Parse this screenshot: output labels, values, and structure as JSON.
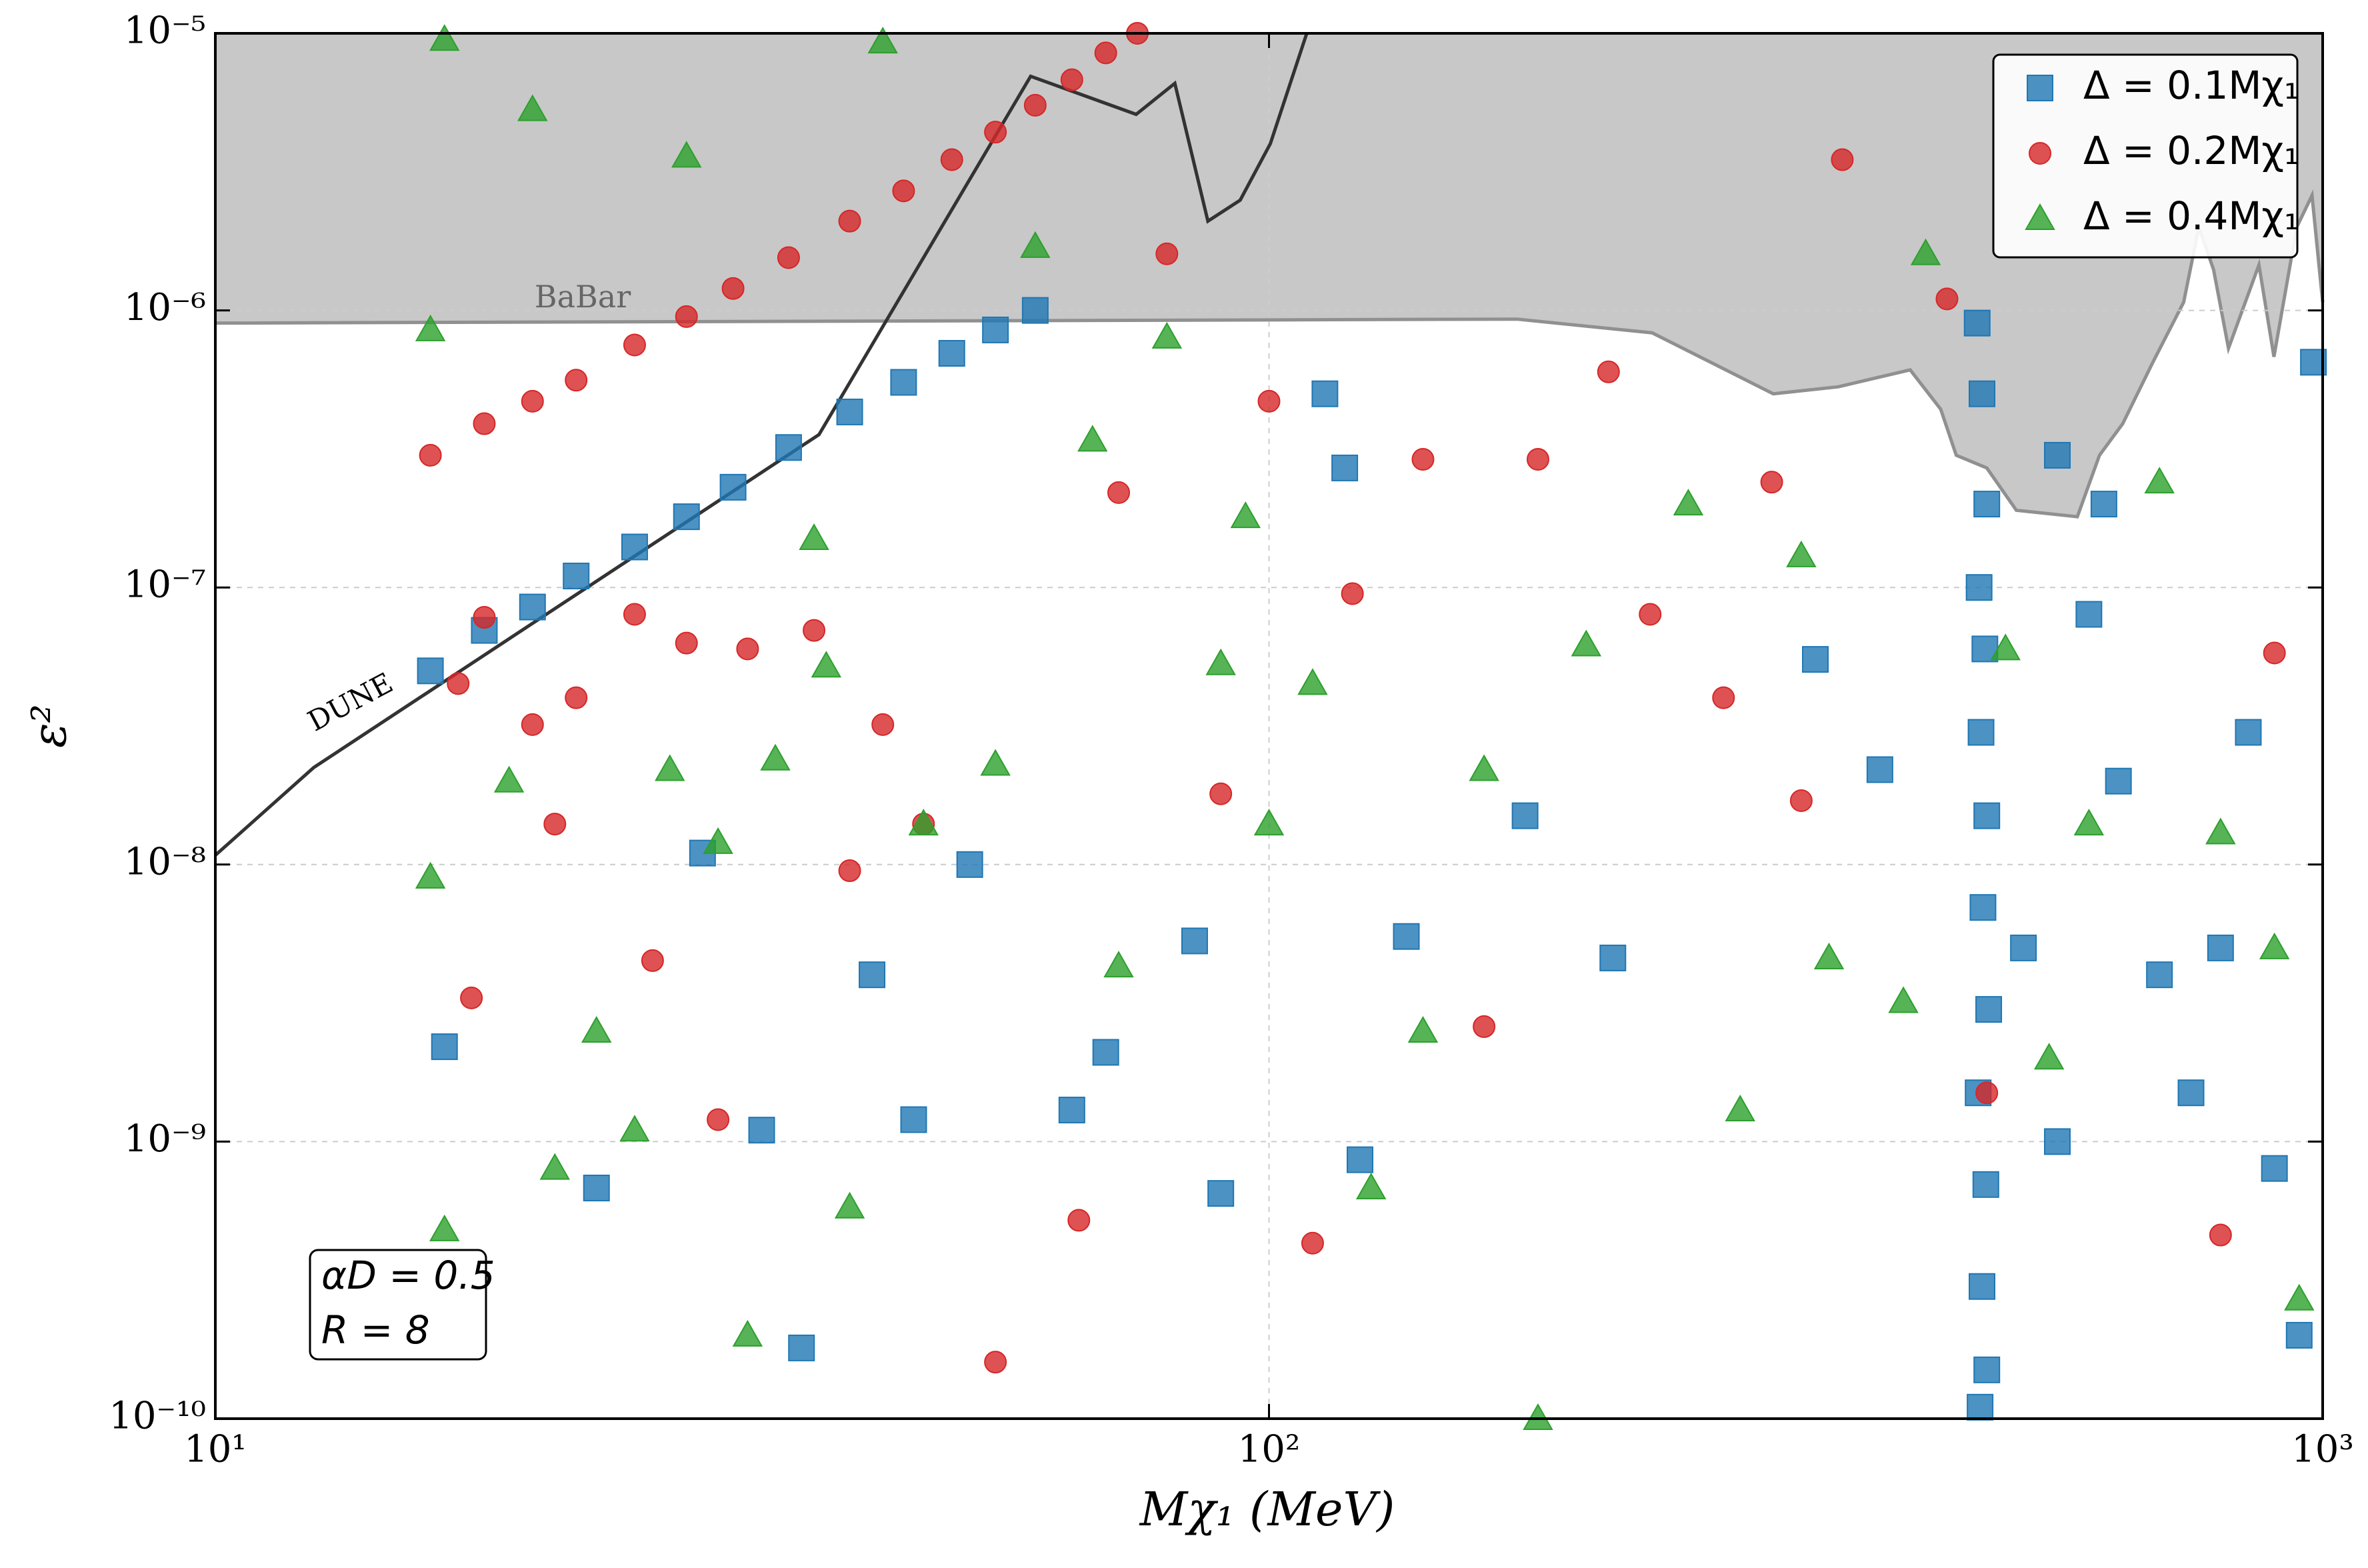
{
  "chart_data": {
    "type": "scatter",
    "xlabel": "Mχ₁ (MeV)",
    "ylabel": "ε²",
    "xscale": "log",
    "yscale": "log",
    "xlim": [
      10,
      1000
    ],
    "ylim": [
      1e-10,
      1e-05
    ],
    "xticks": [
      {
        "value": 10,
        "label": "10¹"
      },
      {
        "value": 100,
        "label": "10²"
      },
      {
        "value": 1000,
        "label": "10³"
      }
    ],
    "yticks": [
      {
        "value": 1e-10,
        "label": "10⁻¹⁰"
      },
      {
        "value": 1e-09,
        "label": "10⁻⁹"
      },
      {
        "value": 1e-08,
        "label": "10⁻⁸"
      },
      {
        "value": 1e-07,
        "label": "10⁻⁷"
      },
      {
        "value": 1e-06,
        "label": "10⁻⁶"
      },
      {
        "value": 1e-05,
        "label": "10⁻⁵"
      }
    ],
    "grid": true,
    "legend": "upper right",
    "regions": [
      {
        "label": "BaBar",
        "color": "#c8c8c8",
        "edge": "#909090",
        "x": [
          10,
          172,
          231,
          301,
          347,
          406,
          434,
          449,
          480,
          512,
          585,
          614,
          646,
          690,
          738,
          763,
          788,
          814,
          870,
          899,
          945,
          977,
          1000
        ],
        "values": [
          9e-07,
          9.3e-07,
          8.3e-07,
          5e-07,
          5.3e-07,
          6.1e-07,
          4.4e-07,
          3e-07,
          2.7e-07,
          1.9e-07,
          1.8e-07,
          3e-07,
          3.9e-07,
          6.5e-07,
          1.07e-06,
          2e-06,
          1.4e-06,
          7.3e-07,
          1.46e-06,
          6.8e-07,
          2e-06,
          2.6e-06,
          1.07e-06
        ]
      }
    ],
    "lines": [
      {
        "label": "DUNE",
        "color": "#333333",
        "x": [
          10,
          12.4,
          37.4,
          59.4,
          74.8,
          81.4,
          87.5,
          93.9,
          100.3,
          108.6
        ],
        "values": [
          1.08e-08,
          2.24e-08,
          3.56e-07,
          7e-06,
          5.1e-06,
          6.6e-06,
          2.1e-06,
          2.5e-06,
          4e-06,
          1e-05
        ]
      }
    ],
    "annotations": [
      "αD = 0.5",
      "R = 8"
    ],
    "series": [
      {
        "name": "Δ = 0.1Mχ₁",
        "color": "#1f77b4",
        "marker": "square",
        "x": [
          16,
          18,
          20,
          22,
          25,
          28,
          31,
          35,
          40,
          45,
          50,
          55,
          60,
          470,
          475,
          480,
          472,
          478,
          474,
          480,
          476,
          482,
          471,
          479,
          475,
          480,
          473,
          16.5,
          23,
          29,
          33,
          36,
          42,
          46,
          52,
          65,
          70,
          85,
          90,
          113,
          118,
          122,
          135,
          175,
          212,
          330,
          380,
          560,
          600,
          640,
          700,
          750,
          800,
          850,
          900,
          950,
          980,
          520,
          560,
          620
        ],
        "values": [
          5e-08,
          7e-08,
          8.5e-08,
          1.1e-07,
          1.4e-07,
          1.8e-07,
          2.3e-07,
          3.2e-07,
          4.3e-07,
          5.5e-07,
          7e-07,
          8.5e-07,
          1e-06,
          9e-07,
          5e-07,
          2e-07,
          1e-07,
          6e-08,
          3e-08,
          1.5e-08,
          7e-09,
          3e-09,
          1.5e-09,
          7e-10,
          3e-10,
          1.5e-10,
          1.1e-10,
          2.2e-09,
          6.8e-10,
          1.1e-08,
          1.1e-09,
          1.8e-10,
          4e-09,
          1.2e-09,
          1e-08,
          1.3e-09,
          2.1e-09,
          5.3e-09,
          6.5e-10,
          5e-07,
          2.7e-07,
          8.6e-10,
          5.5e-09,
          1.5e-08,
          4.6e-09,
          5.5e-08,
          2.2e-08,
          3e-07,
          8e-08,
          2e-08,
          4e-09,
          1.5e-09,
          5e-09,
          3e-08,
          8e-10,
          2e-10,
          6.5e-07,
          5e-09,
          1e-09,
          2e-07
        ]
      },
      {
        "name": "Δ = 0.2Mχ₁",
        "color": "#d62728",
        "marker": "circle",
        "x": [
          16,
          18,
          20,
          22,
          25,
          28,
          31,
          35,
          40,
          45,
          50,
          55,
          60,
          65,
          70,
          75,
          17,
          18,
          17.5,
          20,
          21,
          22,
          25,
          26,
          28,
          30,
          32,
          37,
          40,
          43,
          47,
          55,
          66,
          72,
          80,
          90,
          100,
          110,
          120,
          140,
          160,
          180,
          210,
          230,
          270,
          300,
          320,
          350,
          440,
          480,
          800,
          900
        ],
        "values": [
          3e-07,
          3.9e-07,
          4.7e-07,
          5.6e-07,
          7.5e-07,
          9.5e-07,
          1.2e-06,
          1.55e-06,
          2.1e-06,
          2.7e-06,
          3.5e-06,
          4.4e-06,
          5.5e-06,
          6.8e-06,
          8.5e-06,
          1e-05,
          4.5e-08,
          7.8e-08,
          3.3e-09,
          3.2e-08,
          1.4e-08,
          4e-08,
          8e-08,
          4.5e-09,
          6.3e-08,
          1.2e-09,
          6e-08,
          7e-08,
          9.5e-09,
          3.2e-08,
          1.4e-08,
          1.6e-10,
          5.2e-10,
          2.2e-07,
          1.6e-06,
          1.8e-08,
          4.7e-07,
          4.3e-10,
          9.5e-08,
          2.9e-07,
          2.6e-09,
          2.9e-07,
          6e-07,
          8e-08,
          4e-08,
          2.4e-07,
          1.7e-08,
          3.5e-06,
          1.1e-06,
          1.5e-09,
          4.6e-10,
          5.8e-08
        ]
      },
      {
        "name": "Δ = 0.4Mχ₁",
        "color": "#2ca02c",
        "marker": "triangle",
        "x": [
          16,
          16.5,
          16,
          16.5,
          19,
          20,
          21,
          23,
          25,
          27,
          28,
          30,
          32,
          34,
          37,
          38,
          40,
          43,
          47,
          55,
          60,
          68,
          72,
          80,
          90,
          95,
          100,
          110,
          125,
          140,
          160,
          180,
          200,
          250,
          280,
          320,
          340,
          400,
          420,
          500,
          550,
          600,
          700,
          800,
          900,
          950
        ],
        "values": [
          9e-09,
          4.8e-10,
          8.5e-07,
          9.5e-06,
          2e-08,
          5.3e-06,
          8e-10,
          2.5e-09,
          1.1e-09,
          2.2e-08,
          3.6e-06,
          1.2e-08,
          2e-10,
          2.4e-08,
          1.5e-07,
          5.2e-08,
          5.8e-10,
          9.3e-06,
          1.4e-08,
          2.3e-08,
          1.7e-06,
          3.4e-07,
          4.3e-09,
          8e-07,
          5.3e-08,
          1.8e-07,
          1.4e-08,
          4.5e-08,
          6.8e-10,
          2.5e-09,
          2.2e-08,
          1e-10,
          6.2e-08,
          2e-07,
          1.3e-09,
          1.3e-07,
          4.6e-09,
          3.2e-09,
          1.6e-06,
          6e-08,
          2e-09,
          1.4e-08,
          2.4e-07,
          1.3e-08,
          5e-09,
          2.7e-10
        ]
      }
    ]
  }
}
